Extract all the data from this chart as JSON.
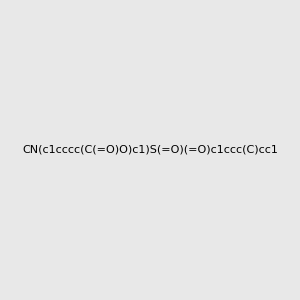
{
  "smiles": "CN(c1cccc(C(=O)O)c1)S(=O)(=O)c1ccc(C)cc1",
  "image_size": 300,
  "background_color": "#e8e8e8",
  "title": ""
}
